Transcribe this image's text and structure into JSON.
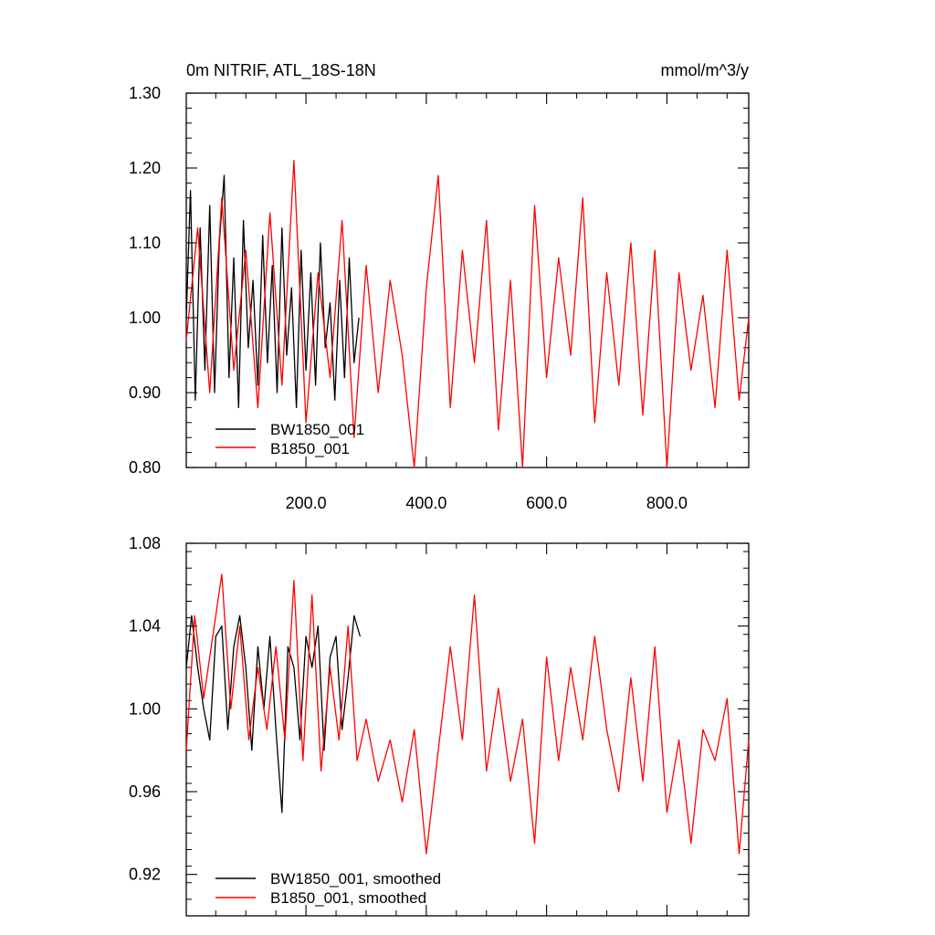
{
  "figure": {
    "title_left": "0m NITRIF, ATL_18S-18N",
    "title_right": "mmol/m^3/y"
  },
  "colors": {
    "series_black": "#000000",
    "series_red": "#ff0000"
  },
  "chart_data": [
    {
      "type": "line",
      "title": "0m NITRIF, ATL_18S-18N",
      "units": "mmol/m^3/y",
      "xlabel": "",
      "ylabel": "",
      "xlim": [
        1,
        936
      ],
      "ylim": [
        0.8,
        1.3
      ],
      "x_ticks": [
        200,
        400,
        600,
        800
      ],
      "x_tick_labels": [
        "200.0",
        "400.0",
        "600.0",
        "800.0"
      ],
      "y_ticks": [
        0.8,
        0.9,
        1.0,
        1.1,
        1.2,
        1.3
      ],
      "y_tick_labels": [
        "0.80",
        "0.90",
        "1.00",
        "1.10",
        "1.20",
        "1.30"
      ],
      "legend_position": "bottom-left",
      "series": [
        {
          "name": "BW1850_001",
          "color": "#000000",
          "x": [
            1,
            8,
            16,
            24,
            32,
            40,
            48,
            56,
            64,
            72,
            80,
            88,
            96,
            104,
            112,
            120,
            128,
            136,
            144,
            152,
            160,
            168,
            176,
            184,
            192,
            200,
            208,
            216,
            224,
            232,
            240,
            248,
            256,
            264,
            272,
            280,
            288
          ],
          "values": [
            1.0,
            1.17,
            0.89,
            1.12,
            0.93,
            1.15,
            0.9,
            1.1,
            1.19,
            0.92,
            1.08,
            0.88,
            1.13,
            0.96,
            1.05,
            0.91,
            1.11,
            0.94,
            1.07,
            0.9,
            1.12,
            0.95,
            1.04,
            0.88,
            1.09,
            0.93,
            1.06,
            0.91,
            1.1,
            0.96,
            1.02,
            0.89,
            1.05,
            0.92,
            1.08,
            0.94,
            1.0
          ]
        },
        {
          "name": "B1850_001",
          "color": "#ff0000",
          "x": [
            1,
            20,
            40,
            60,
            80,
            100,
            120,
            140,
            160,
            180,
            200,
            220,
            240,
            260,
            280,
            300,
            320,
            340,
            360,
            380,
            400,
            420,
            440,
            460,
            480,
            500,
            520,
            540,
            560,
            580,
            600,
            620,
            640,
            660,
            680,
            700,
            720,
            740,
            760,
            780,
            800,
            820,
            840,
            860,
            880,
            900,
            920,
            936
          ],
          "values": [
            0.97,
            1.12,
            0.9,
            1.16,
            0.93,
            1.09,
            0.88,
            1.14,
            0.91,
            1.21,
            0.86,
            1.06,
            0.92,
            1.13,
            0.84,
            1.07,
            0.9,
            1.05,
            0.95,
            0.8,
            1.04,
            1.19,
            0.88,
            1.09,
            0.94,
            1.13,
            0.85,
            1.05,
            0.8,
            1.15,
            0.92,
            1.08,
            0.95,
            1.16,
            0.86,
            1.06,
            0.91,
            1.1,
            0.87,
            1.09,
            0.8,
            1.06,
            0.93,
            1.03,
            0.88,
            1.09,
            0.89,
            1.0
          ]
        }
      ]
    },
    {
      "type": "line",
      "title": "",
      "xlabel": "",
      "ylabel": "",
      "xlim": [
        1,
        936
      ],
      "ylim": [
        0.9,
        1.08
      ],
      "x_ticks": [
        200,
        400,
        600,
        800
      ],
      "y_ticks": [
        0.92,
        0.96,
        1.0,
        1.04,
        1.08
      ],
      "y_tick_labels": [
        "0.92",
        "0.96",
        "1.00",
        "1.04",
        "1.08"
      ],
      "legend_position": "bottom-left",
      "series": [
        {
          "name": "BW1850_001, smoothed",
          "color": "#000000",
          "x": [
            1,
            10,
            20,
            30,
            40,
            50,
            60,
            70,
            80,
            90,
            100,
            110,
            120,
            130,
            140,
            150,
            160,
            170,
            180,
            190,
            200,
            210,
            220,
            230,
            240,
            250,
            260,
            270,
            280,
            290
          ],
          "values": [
            1.02,
            1.045,
            1.02,
            1.0,
            0.985,
            1.035,
            1.04,
            0.99,
            1.03,
            1.045,
            1.02,
            0.98,
            1.03,
            1.0,
            1.035,
            0.99,
            0.95,
            1.03,
            1.02,
            0.985,
            1.035,
            1.02,
            1.04,
            0.98,
            1.025,
            1.035,
            0.99,
            1.015,
            1.045,
            1.035
          ]
        },
        {
          "name": "B1850_001, smoothed",
          "color": "#ff0000",
          "x": [
            1,
            15,
            30,
            45,
            60,
            75,
            90,
            105,
            120,
            135,
            150,
            165,
            180,
            195,
            210,
            225,
            240,
            255,
            270,
            285,
            300,
            320,
            340,
            360,
            380,
            400,
            420,
            440,
            460,
            480,
            500,
            520,
            540,
            560,
            580,
            600,
            620,
            640,
            660,
            680,
            700,
            720,
            740,
            760,
            780,
            800,
            820,
            840,
            860,
            880,
            900,
            920,
            936
          ],
          "values": [
            0.98,
            1.045,
            1.005,
            1.035,
            1.065,
            1.0,
            1.04,
            0.985,
            1.02,
            0.99,
            1.03,
            0.985,
            1.062,
            0.975,
            1.055,
            0.97,
            1.02,
            0.985,
            1.04,
            0.975,
            0.995,
            0.965,
            0.985,
            0.955,
            0.99,
            0.93,
            0.98,
            1.03,
            0.985,
            1.055,
            0.97,
            1.01,
            0.965,
            0.995,
            0.935,
            1.025,
            0.975,
            1.02,
            0.985,
            1.035,
            0.99,
            0.96,
            1.015,
            0.965,
            1.03,
            0.95,
            0.985,
            0.935,
            0.99,
            0.975,
            1.005,
            0.93,
            0.985
          ]
        }
      ]
    }
  ]
}
